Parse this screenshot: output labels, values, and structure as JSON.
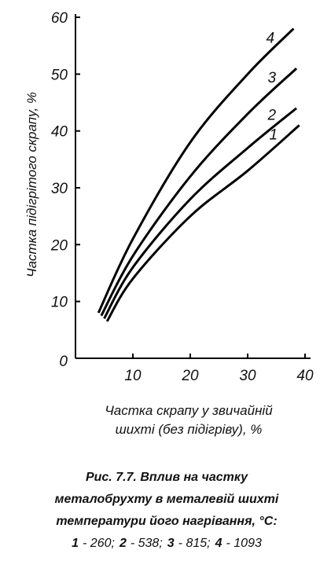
{
  "chart_data": {
    "type": "line",
    "y_label": "Частка підігрітого скрапу, %",
    "x_label": [
      "Частка скрапу у звичайній",
      "шихті (без підігріву), %"
    ],
    "xlim": [
      0,
      40
    ],
    "ylim": [
      0,
      60
    ],
    "xticks": [
      10,
      20,
      30,
      40
    ],
    "yticks": [
      0,
      10,
      20,
      30,
      40,
      50,
      60
    ],
    "series": [
      {
        "name": "1",
        "legend_text": "- 260;",
        "color": "#000000",
        "x": [
          5.5,
          10,
          20,
          30,
          39
        ],
        "values": [
          6.5,
          14,
          25,
          33,
          41
        ]
      },
      {
        "name": "2",
        "legend_text": "- 538;",
        "color": "#000000",
        "x": [
          5,
          10,
          20,
          30,
          38.5
        ],
        "values": [
          7,
          16,
          28,
          37,
          44
        ]
      },
      {
        "name": "3",
        "legend_text": "- 815;",
        "color": "#000000",
        "x": [
          4.5,
          10,
          20,
          30,
          38.5
        ],
        "values": [
          7.5,
          18,
          32,
          43,
          51
        ]
      },
      {
        "name": "4",
        "legend_text": "- 1093",
        "color": "#000000",
        "x": [
          4,
          10,
          20,
          30,
          38
        ],
        "values": [
          8,
          21,
          38,
          50,
          58
        ]
      }
    ],
    "caption": [
      "Рис. 7.7. Вплив на частку",
      "металобрухту в металевій шихті",
      "температури його нагрівання, °С:"
    ]
  }
}
